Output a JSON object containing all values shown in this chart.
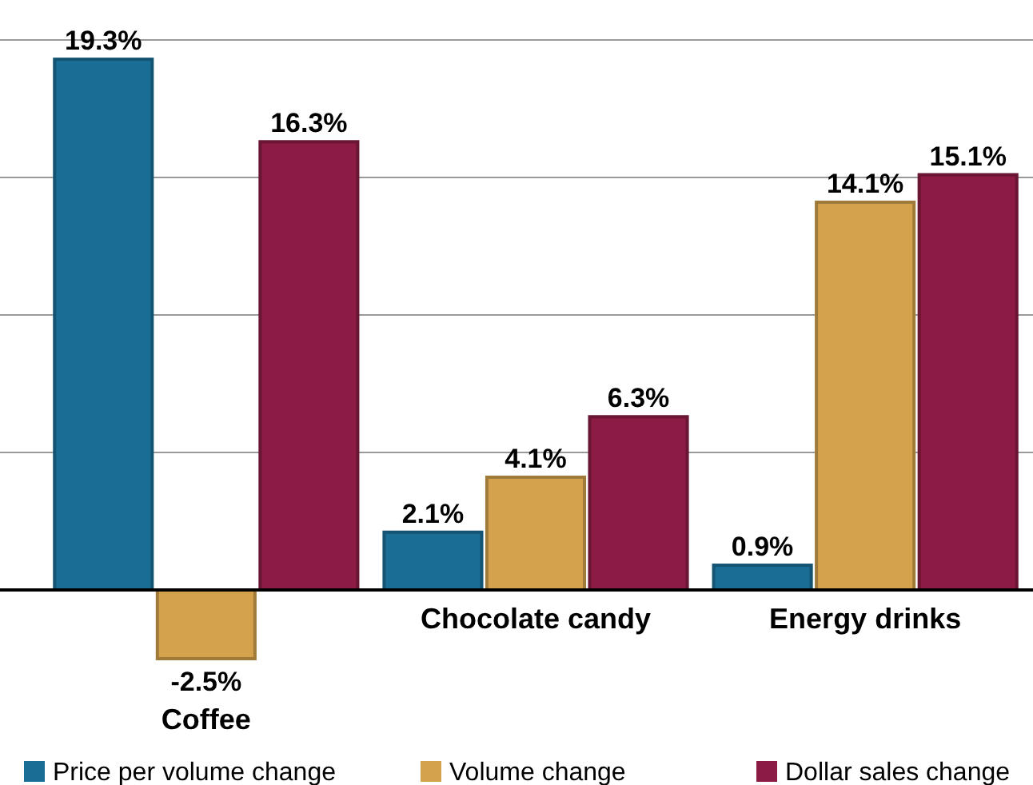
{
  "chart_data": {
    "type": "bar",
    "categories": [
      "Coffee",
      "Chocolate candy",
      "Energy drinks"
    ],
    "series": [
      {
        "name": "Price per volume change",
        "color": "#1a6e96",
        "values": [
          19.3,
          2.1,
          0.9
        ],
        "value_labels": [
          "19.3%",
          "2.1%",
          "0.9%"
        ]
      },
      {
        "name": "Volume change",
        "color": "#d4a24c",
        "values": [
          -2.5,
          4.1,
          14.1
        ],
        "value_labels": [
          "-2.5%",
          "4.1%",
          "14.1%"
        ]
      },
      {
        "name": "Dollar sales change",
        "color": "#8c1c45",
        "values": [
          16.3,
          6.3,
          15.1
        ],
        "value_labels": [
          "16.3%",
          "6.3%",
          "15.1%"
        ]
      }
    ],
    "yticks": [
      {
        "value": 5,
        "label": null
      },
      {
        "value": 10,
        "label": null
      },
      {
        "value": 15,
        "label": null
      },
      {
        "value": 20,
        "label": null
      }
    ],
    "grid": "y",
    "legend": "bottom"
  }
}
